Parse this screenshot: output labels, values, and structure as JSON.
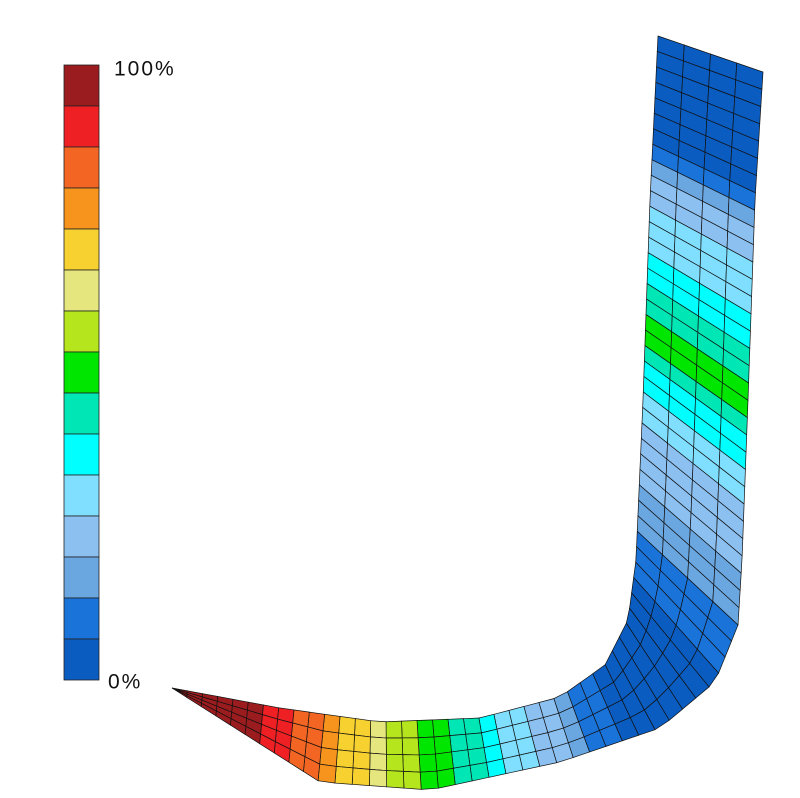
{
  "legend": {
    "max_label": "100%",
    "min_label": "0%"
  }
}
